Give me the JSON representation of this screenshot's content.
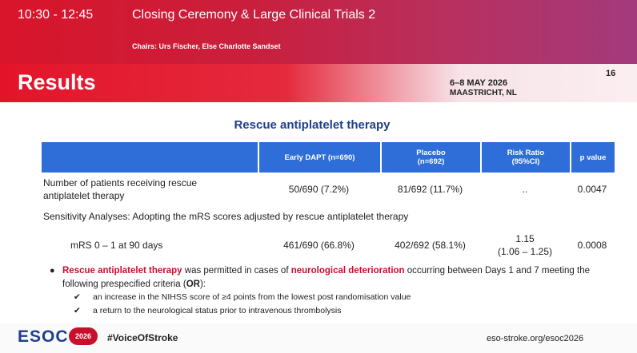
{
  "header": {
    "time": "10:30 - 12:45",
    "session": "Closing Ceremony & Large Clinical Trials 2",
    "chairs": "Chairs: Urs Fischer, Else Charlotte Sandset"
  },
  "banner": {
    "title": "Results",
    "dates": "6–8 MAY 2026",
    "location": "MAASTRICHT, NL",
    "slide_number": "16"
  },
  "subtitle": "Rescue antiplatelet therapy",
  "table": {
    "columns": [
      [
        "Early DAPT (n=690)"
      ],
      [
        "Placebo",
        "(n=692)"
      ],
      [
        "Risk Ratio",
        "(95%CI)"
      ],
      [
        "p value"
      ]
    ],
    "rows": [
      {
        "label": [
          "Number of patients receiving rescue",
          "antiplatelet therapy"
        ],
        "cells": [
          [
            "50/690 (7.2%)"
          ],
          [
            "81/692 (11.7%)"
          ],
          [
            ".."
          ],
          [
            "0.0047"
          ]
        ]
      },
      {
        "label": [
          "mRS 0 – 1 at 90 days"
        ],
        "cells": [
          [
            "461/690 (66.8%)"
          ],
          [
            "402/692 (58.1%)"
          ],
          [
            "1.15",
            "(1.06 – 1.25)"
          ],
          [
            "0.0008"
          ]
        ]
      }
    ],
    "section": "Sensitivity Analyses: Adopting the mRS scores adjusted by rescue antiplatelet therapy"
  },
  "bullet": {
    "parts": [
      "Rescue antiplatelet therapy",
      " was permitted in cases of ",
      "neurological deterioration",
      " occurring between Days 1 and 7 meeting the following prespecified criteria (",
      "OR",
      "):"
    ],
    "criteria": [
      "an increase in the NIHSS score of ≥4 points from the lowest post randomisation value",
      "a return to the neurological status prior to intravenous thrombolysis"
    ]
  },
  "footer": {
    "logo": "ESOC",
    "badge": "2026",
    "hashtag": "#VoiceOfStroke",
    "url": "eso-stroke.org/esoc2026"
  }
}
